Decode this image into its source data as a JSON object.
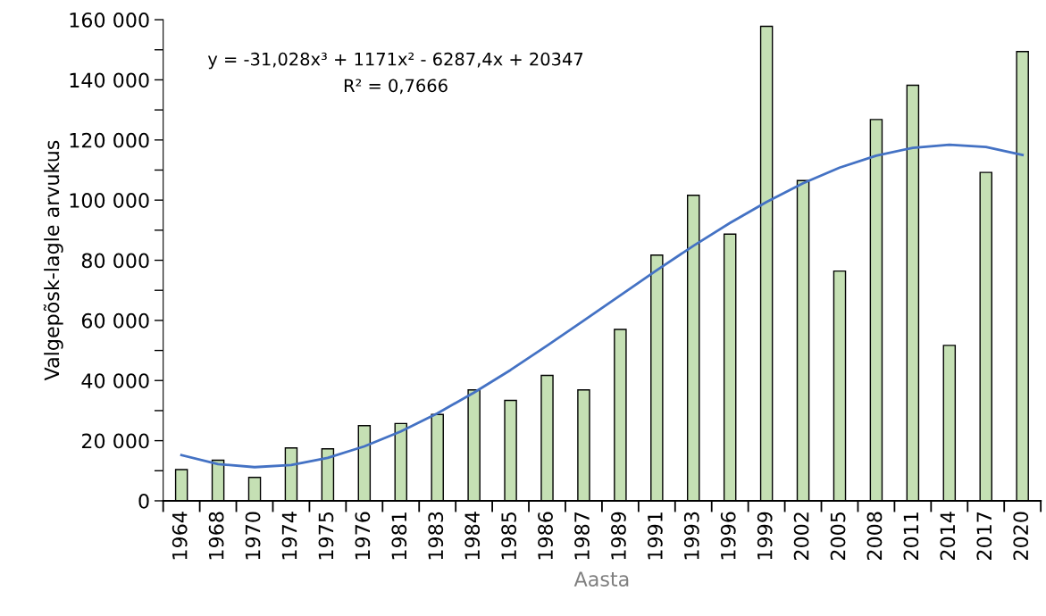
{
  "chart_data": {
    "type": "bar",
    "xlabel": "Aasta",
    "ylabel": "Valgepõsk-lagle arvukus",
    "categories": [
      "1964",
      "1968",
      "1970",
      "1974",
      "1975",
      "1976",
      "1981",
      "1983",
      "1984",
      "1985",
      "1986",
      "1987",
      "1989",
      "1991",
      "1993",
      "1996",
      "1999",
      "2002",
      "2005",
      "2008",
      "2011",
      "2014",
      "2017",
      "2020"
    ],
    "series": [
      {
        "color": "#c5e0b4",
        "values": [
          10400,
          13500,
          7800,
          17600,
          17300,
          25000,
          25700,
          28700,
          36900,
          33400,
          41700,
          36900,
          57000,
          81700,
          101600,
          88700,
          157800,
          106500,
          76400,
          126800,
          138200,
          51700,
          109200,
          149400
        ]
      },
      {
        "type": "line",
        "color": "#4472c4",
        "values": [
          15200,
          12200,
          11200,
          11900,
          14300,
          18100,
          23100,
          29100,
          36000,
          43500,
          51600,
          59900,
          68300,
          76700,
          84800,
          92400,
          99400,
          105600,
          110800,
          114800,
          117400,
          118400,
          117700,
          115000
        ]
      }
    ],
    "ylim": [
      0,
      160000
    ],
    "yticks": [
      {
        "value": 0,
        "label": "0"
      },
      {
        "value": 10000,
        "label": null
      },
      {
        "value": 20000,
        "label": "20 000"
      },
      {
        "value": 30000,
        "label": null
      },
      {
        "value": 40000,
        "label": "40 000"
      },
      {
        "value": 50000,
        "label": null
      },
      {
        "value": 60000,
        "label": "60 000"
      },
      {
        "value": 70000,
        "label": null
      },
      {
        "value": 80000,
        "label": "80 000"
      },
      {
        "value": 90000,
        "label": null
      },
      {
        "value": 100000,
        "label": "100 000"
      },
      {
        "value": 110000,
        "label": null
      },
      {
        "value": 120000,
        "label": "120 000"
      },
      {
        "value": 130000,
        "label": null
      },
      {
        "value": 140000,
        "label": "140 000"
      },
      {
        "value": 150000,
        "label": null
      },
      {
        "value": 160000,
        "label": "160 000"
      }
    ],
    "annotations": [
      "y = -31,028x³ + 1171x² - 6287,4x + 20347",
      "R² = 0,7666"
    ],
    "grid": false,
    "legend": false
  }
}
